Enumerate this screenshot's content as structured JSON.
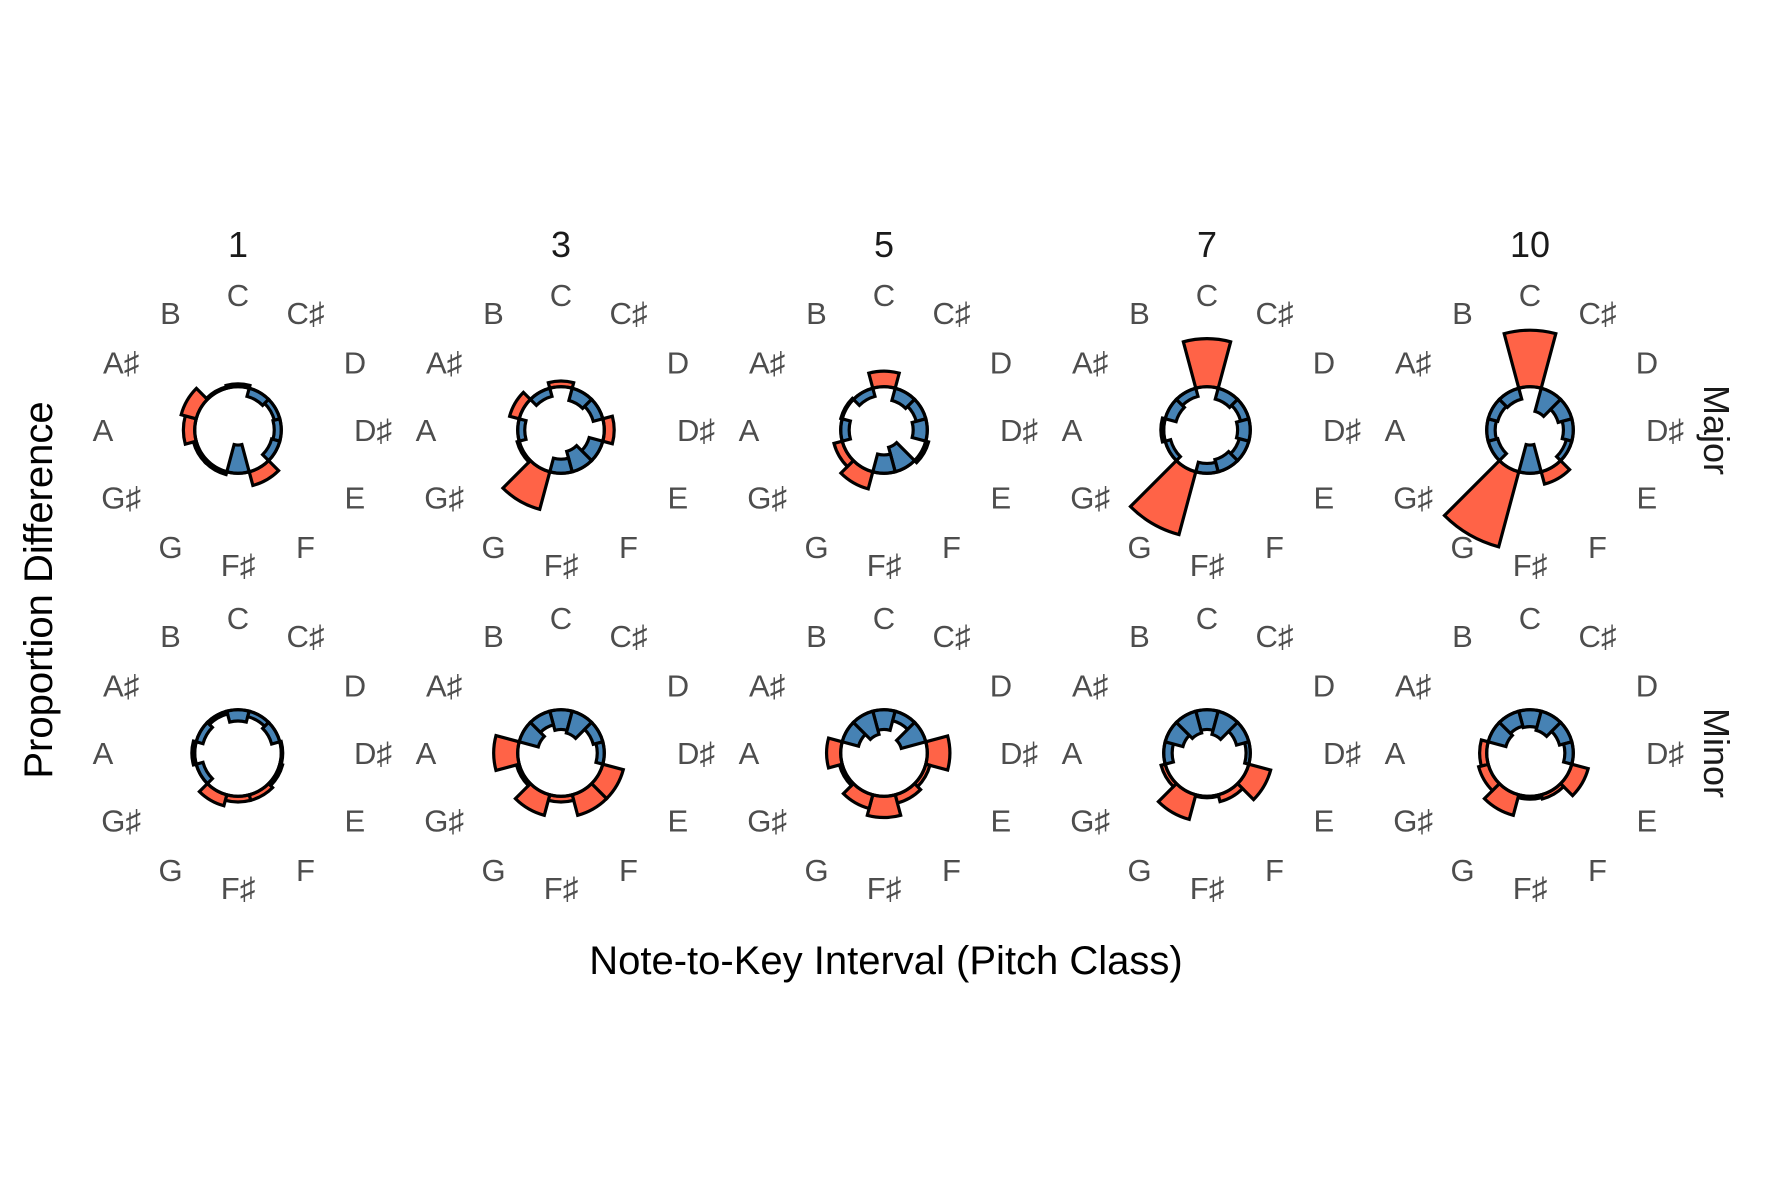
{
  "chart_data": {
    "type": "bar",
    "coordinate_system": "polar",
    "xlabel": "Note-to-Key Interval (Pitch Class)",
    "ylabel": "Proportion Difference",
    "categories": [
      "C",
      "C♯",
      "D",
      "D♯",
      "E",
      "F",
      "F♯",
      "G",
      "G♯",
      "A",
      "A♯",
      "B"
    ],
    "column_facets": [
      "1",
      "3",
      "5",
      "7",
      "10"
    ],
    "row_facets": [
      "Major",
      "Minor"
    ],
    "radial_range": [
      -0.05,
      0.12
    ],
    "zero_reference_radius": 0.0,
    "colors": {
      "positive": "#FF6347",
      "negative": "#4682B4",
      "outline": "#000000"
    },
    "panels": [
      {
        "column": "1",
        "row": "Major",
        "values": [
          0.004,
          -0.012,
          -0.008,
          -0.01,
          -0.012,
          0.02,
          -0.04,
          0.004,
          0.004,
          0.016,
          0.022,
          0.002
        ]
      },
      {
        "column": "3",
        "row": "Major",
        "values": [
          0.008,
          -0.018,
          -0.014,
          0.014,
          -0.02,
          -0.03,
          -0.02,
          0.055,
          0.003,
          -0.01,
          0.014,
          -0.012
        ]
      },
      {
        "column": "5",
        "row": "Major",
        "values": [
          0.022,
          -0.018,
          -0.014,
          -0.02,
          0.004,
          -0.036,
          -0.026,
          0.025,
          0.012,
          -0.012,
          0.002,
          -0.012
        ]
      },
      {
        "column": "7",
        "row": "Major",
        "values": [
          0.068,
          -0.016,
          -0.012,
          -0.018,
          -0.014,
          -0.018,
          -0.014,
          0.092,
          -0.008,
          0.004,
          -0.016,
          -0.012
        ]
      },
      {
        "column": "10",
        "row": "Major",
        "values": [
          0.08,
          -0.034,
          -0.02,
          -0.014,
          -0.008,
          0.018,
          -0.04,
          0.11,
          -0.014,
          -0.012,
          -0.014,
          -0.016
        ]
      },
      {
        "column": "1",
        "row": "Minor",
        "values": [
          -0.016,
          -0.008,
          -0.012,
          0.002,
          0.004,
          0.008,
          0.008,
          0.016,
          -0.01,
          0.004,
          -0.01,
          -0.004
        ]
      },
      {
        "column": "3",
        "row": "Minor",
        "values": [
          -0.028,
          -0.032,
          -0.014,
          -0.01,
          0.03,
          0.03,
          0.008,
          0.03,
          0.004,
          0.034,
          -0.028,
          -0.02
        ]
      },
      {
        "column": "5",
        "row": "Minor",
        "values": [
          -0.028,
          -0.014,
          -0.036,
          0.032,
          0.006,
          0.012,
          0.03,
          0.02,
          0.004,
          0.02,
          -0.024,
          -0.034
        ]
      },
      {
        "column": "7",
        "row": "Minor",
        "values": [
          -0.028,
          -0.034,
          -0.018,
          -0.006,
          0.032,
          0.01,
          0.002,
          0.036,
          0.006,
          -0.012,
          -0.026,
          -0.032
        ]
      },
      {
        "column": "10",
        "row": "Minor",
        "values": [
          -0.024,
          -0.028,
          -0.018,
          -0.012,
          0.024,
          0.006,
          0.004,
          0.03,
          0.014,
          0.01,
          -0.026,
          -0.022
        ]
      }
    ]
  }
}
